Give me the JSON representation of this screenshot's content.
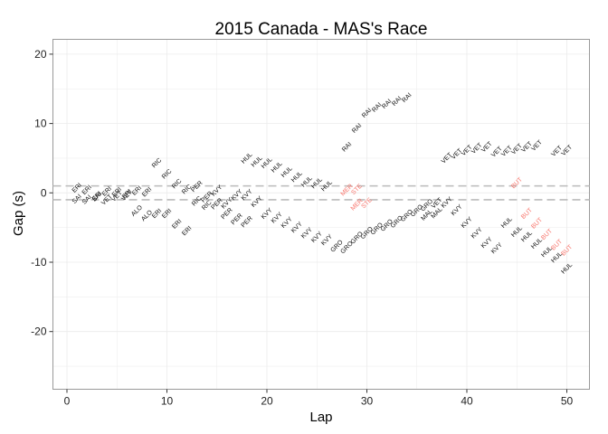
{
  "chart_data": {
    "type": "scatter",
    "subtype": "text-labels",
    "title": "2015 Canada - MAS's Race",
    "xlabel": "Lap",
    "ylabel": "Gap (s)",
    "xlim": [
      -1.5,
      52.5
    ],
    "ylim": [
      -28,
      22.5
    ],
    "xticks": [
      0,
      10,
      20,
      30,
      40,
      50
    ],
    "yticks": [
      20,
      10,
      0,
      -10,
      -20
    ],
    "grid": true,
    "reference_lines": [
      1,
      -1
    ],
    "colors": {
      "default": "#000000",
      "highlight": "#f8766d",
      "reference_line": "#bbbbbb",
      "grid": "#ebebeb",
      "border": "#9a9a9a"
    },
    "points": [
      {
        "lap": 1,
        "gap": 0.7,
        "label": "ERI"
      },
      {
        "lap": 1,
        "gap": -0.9,
        "label": "SAI"
      },
      {
        "lap": 2,
        "gap": 0.4,
        "label": "ERI"
      },
      {
        "lap": 2,
        "gap": -1.0,
        "label": "SAI"
      },
      {
        "lap": 3,
        "gap": -0.5,
        "label": "ERI"
      },
      {
        "lap": 3,
        "gap": -0.6,
        "label": "SAI"
      },
      {
        "lap": 4,
        "gap": 0.2,
        "label": "ERI"
      },
      {
        "lap": 4,
        "gap": -1.0,
        "label": "VET"
      },
      {
        "lap": 5,
        "gap": 0.1,
        "label": "ERI"
      },
      {
        "lap": 5,
        "gap": -0.5,
        "label": "VET"
      },
      {
        "lap": 6,
        "gap": -0.2,
        "label": "ERI"
      },
      {
        "lap": 6,
        "gap": -0.4,
        "label": "VET"
      },
      {
        "lap": 7,
        "gap": 0.3,
        "label": "ERI"
      },
      {
        "lap": 8,
        "gap": 0.1,
        "label": "ERI"
      },
      {
        "lap": 7,
        "gap": -2.6,
        "label": "ALO"
      },
      {
        "lap": 8,
        "gap": -3.3,
        "label": "ALO"
      },
      {
        "lap": 9,
        "gap": -3.0,
        "label": "ERI"
      },
      {
        "lap": 9,
        "gap": 4.3,
        "label": "RIC"
      },
      {
        "lap": 10,
        "gap": 2.7,
        "label": "RIC"
      },
      {
        "lap": 10,
        "gap": -3.0,
        "label": "ERI"
      },
      {
        "lap": 11,
        "gap": 1.3,
        "label": "RIC"
      },
      {
        "lap": 11,
        "gap": -4.5,
        "label": "ERI"
      },
      {
        "lap": 12,
        "gap": -5.5,
        "label": "ERI"
      },
      {
        "lap": 12,
        "gap": 0.5,
        "label": "RIC"
      },
      {
        "lap": 13,
        "gap": 0.9,
        "label": "PER"
      },
      {
        "lap": 13,
        "gap": -1.2,
        "label": "RIC"
      },
      {
        "lap": 14,
        "gap": -0.6,
        "label": "PER"
      },
      {
        "lap": 14,
        "gap": -1.8,
        "label": "RIC"
      },
      {
        "lap": 15,
        "gap": -1.6,
        "label": "PER"
      },
      {
        "lap": 15,
        "gap": 0.3,
        "label": "KVY"
      },
      {
        "lap": 16,
        "gap": -1.5,
        "label": "KVY"
      },
      {
        "lap": 16,
        "gap": -3.0,
        "label": "PER"
      },
      {
        "lap": 17,
        "gap": -0.3,
        "label": "KVY"
      },
      {
        "lap": 17,
        "gap": -3.8,
        "label": "PER"
      },
      {
        "lap": 18,
        "gap": -0.3,
        "label": "KVY"
      },
      {
        "lap": 18,
        "gap": -4.2,
        "label": "PER"
      },
      {
        "lap": 18,
        "gap": 5.0,
        "label": "HUL"
      },
      {
        "lap": 19,
        "gap": -1.3,
        "label": "KVY"
      },
      {
        "lap": 19,
        "gap": 4.5,
        "label": "HUL"
      },
      {
        "lap": 20,
        "gap": -3.0,
        "label": "KVY"
      },
      {
        "lap": 20,
        "gap": 4.3,
        "label": "HUL"
      },
      {
        "lap": 21,
        "gap": -3.6,
        "label": "KVY"
      },
      {
        "lap": 21,
        "gap": 3.7,
        "label": "HUL"
      },
      {
        "lap": 22,
        "gap": -4.3,
        "label": "KVY"
      },
      {
        "lap": 22,
        "gap": 3.0,
        "label": "HUL"
      },
      {
        "lap": 23,
        "gap": -5.0,
        "label": "KVY"
      },
      {
        "lap": 23,
        "gap": 2.3,
        "label": "HUL"
      },
      {
        "lap": 24,
        "gap": -5.8,
        "label": "KVY"
      },
      {
        "lap": 24,
        "gap": 1.6,
        "label": "HUL"
      },
      {
        "lap": 25,
        "gap": -6.4,
        "label": "KVY"
      },
      {
        "lap": 25,
        "gap": 1.4,
        "label": "HUL"
      },
      {
        "lap": 26,
        "gap": -6.8,
        "label": "KVY"
      },
      {
        "lap": 26,
        "gap": 1.0,
        "label": "HUL"
      },
      {
        "lap": 27,
        "gap": -7.7,
        "label": "GRO"
      },
      {
        "lap": 28,
        "gap": 6.6,
        "label": "RAI"
      },
      {
        "lap": 28,
        "gap": 0.4,
        "label": "MER",
        "highlight": true
      },
      {
        "lap": 28,
        "gap": -7.9,
        "label": "GRO"
      },
      {
        "lap": 29,
        "gap": 9.3,
        "label": "RAI"
      },
      {
        "lap": 29,
        "gap": 0.5,
        "label": "STE",
        "highlight": true
      },
      {
        "lap": 29,
        "gap": -1.7,
        "label": "MER",
        "highlight": true
      },
      {
        "lap": 29,
        "gap": -6.5,
        "label": "GRO"
      },
      {
        "lap": 30,
        "gap": 11.5,
        "label": "RAI"
      },
      {
        "lap": 30,
        "gap": -1.5,
        "label": "STE",
        "highlight": true
      },
      {
        "lap": 30,
        "gap": -5.8,
        "label": "GRO"
      },
      {
        "lap": 31,
        "gap": 12.3,
        "label": "RAI"
      },
      {
        "lap": 31,
        "gap": -5.2,
        "label": "GRO"
      },
      {
        "lap": 32,
        "gap": 12.8,
        "label": "RAI"
      },
      {
        "lap": 32,
        "gap": -4.7,
        "label": "GRO"
      },
      {
        "lap": 33,
        "gap": 13.2,
        "label": "RAI"
      },
      {
        "lap": 33,
        "gap": -4.2,
        "label": "GRO"
      },
      {
        "lap": 34,
        "gap": 13.7,
        "label": "RAI"
      },
      {
        "lap": 34,
        "gap": -3.3,
        "label": "GRO"
      },
      {
        "lap": 35,
        "gap": -2.6,
        "label": "GRO"
      },
      {
        "lap": 36,
        "gap": -1.8,
        "label": "GRO"
      },
      {
        "lap": 36,
        "gap": -3.2,
        "label": "MAL"
      },
      {
        "lap": 37,
        "gap": -1.5,
        "label": "VET"
      },
      {
        "lap": 37,
        "gap": -2.9,
        "label": "MAL"
      },
      {
        "lap": 38,
        "gap": 5.0,
        "label": "VET"
      },
      {
        "lap": 38,
        "gap": -1.4,
        "label": "KVY"
      },
      {
        "lap": 39,
        "gap": 5.6,
        "label": "VET"
      },
      {
        "lap": 39,
        "gap": -2.5,
        "label": "KVY"
      },
      {
        "lap": 40,
        "gap": 6.1,
        "label": "VET"
      },
      {
        "lap": 40,
        "gap": -4.3,
        "label": "KVY"
      },
      {
        "lap": 41,
        "gap": 6.4,
        "label": "VET"
      },
      {
        "lap": 41,
        "gap": -5.8,
        "label": "KVY"
      },
      {
        "lap": 42,
        "gap": 6.6,
        "label": "VET"
      },
      {
        "lap": 42,
        "gap": -7.2,
        "label": "KVY"
      },
      {
        "lap": 43,
        "gap": 5.9,
        "label": "VET"
      },
      {
        "lap": 43,
        "gap": -8.0,
        "label": "KVY"
      },
      {
        "lap": 44,
        "gap": 6.0,
        "label": "VET"
      },
      {
        "lap": 44,
        "gap": -4.3,
        "label": "HUL"
      },
      {
        "lap": 45,
        "gap": 6.3,
        "label": "VET"
      },
      {
        "lap": 45,
        "gap": 1.4,
        "label": "BUT",
        "highlight": true
      },
      {
        "lap": 45,
        "gap": -5.6,
        "label": "HUL"
      },
      {
        "lap": 46,
        "gap": 6.6,
        "label": "VET"
      },
      {
        "lap": 46,
        "gap": -3.0,
        "label": "BUT",
        "highlight": true
      },
      {
        "lap": 46,
        "gap": -6.3,
        "label": "HUL"
      },
      {
        "lap": 47,
        "gap": 6.8,
        "label": "VET"
      },
      {
        "lap": 47,
        "gap": -4.4,
        "label": "BUT",
        "highlight": true
      },
      {
        "lap": 47,
        "gap": -7.3,
        "label": "HUL"
      },
      {
        "lap": 48,
        "gap": -6.0,
        "label": "BUT",
        "highlight": true
      },
      {
        "lap": 48,
        "gap": -8.5,
        "label": "HUL"
      },
      {
        "lap": 49,
        "gap": 6.0,
        "label": "VET"
      },
      {
        "lap": 49,
        "gap": -7.5,
        "label": "BUT",
        "highlight": true
      },
      {
        "lap": 49,
        "gap": -9.3,
        "label": "HUL"
      },
      {
        "lap": 50,
        "gap": 6.1,
        "label": "VET"
      },
      {
        "lap": 50,
        "gap": -8.3,
        "label": "BUT",
        "highlight": true
      },
      {
        "lap": 50,
        "gap": -10.9,
        "label": "HUL"
      }
    ]
  }
}
